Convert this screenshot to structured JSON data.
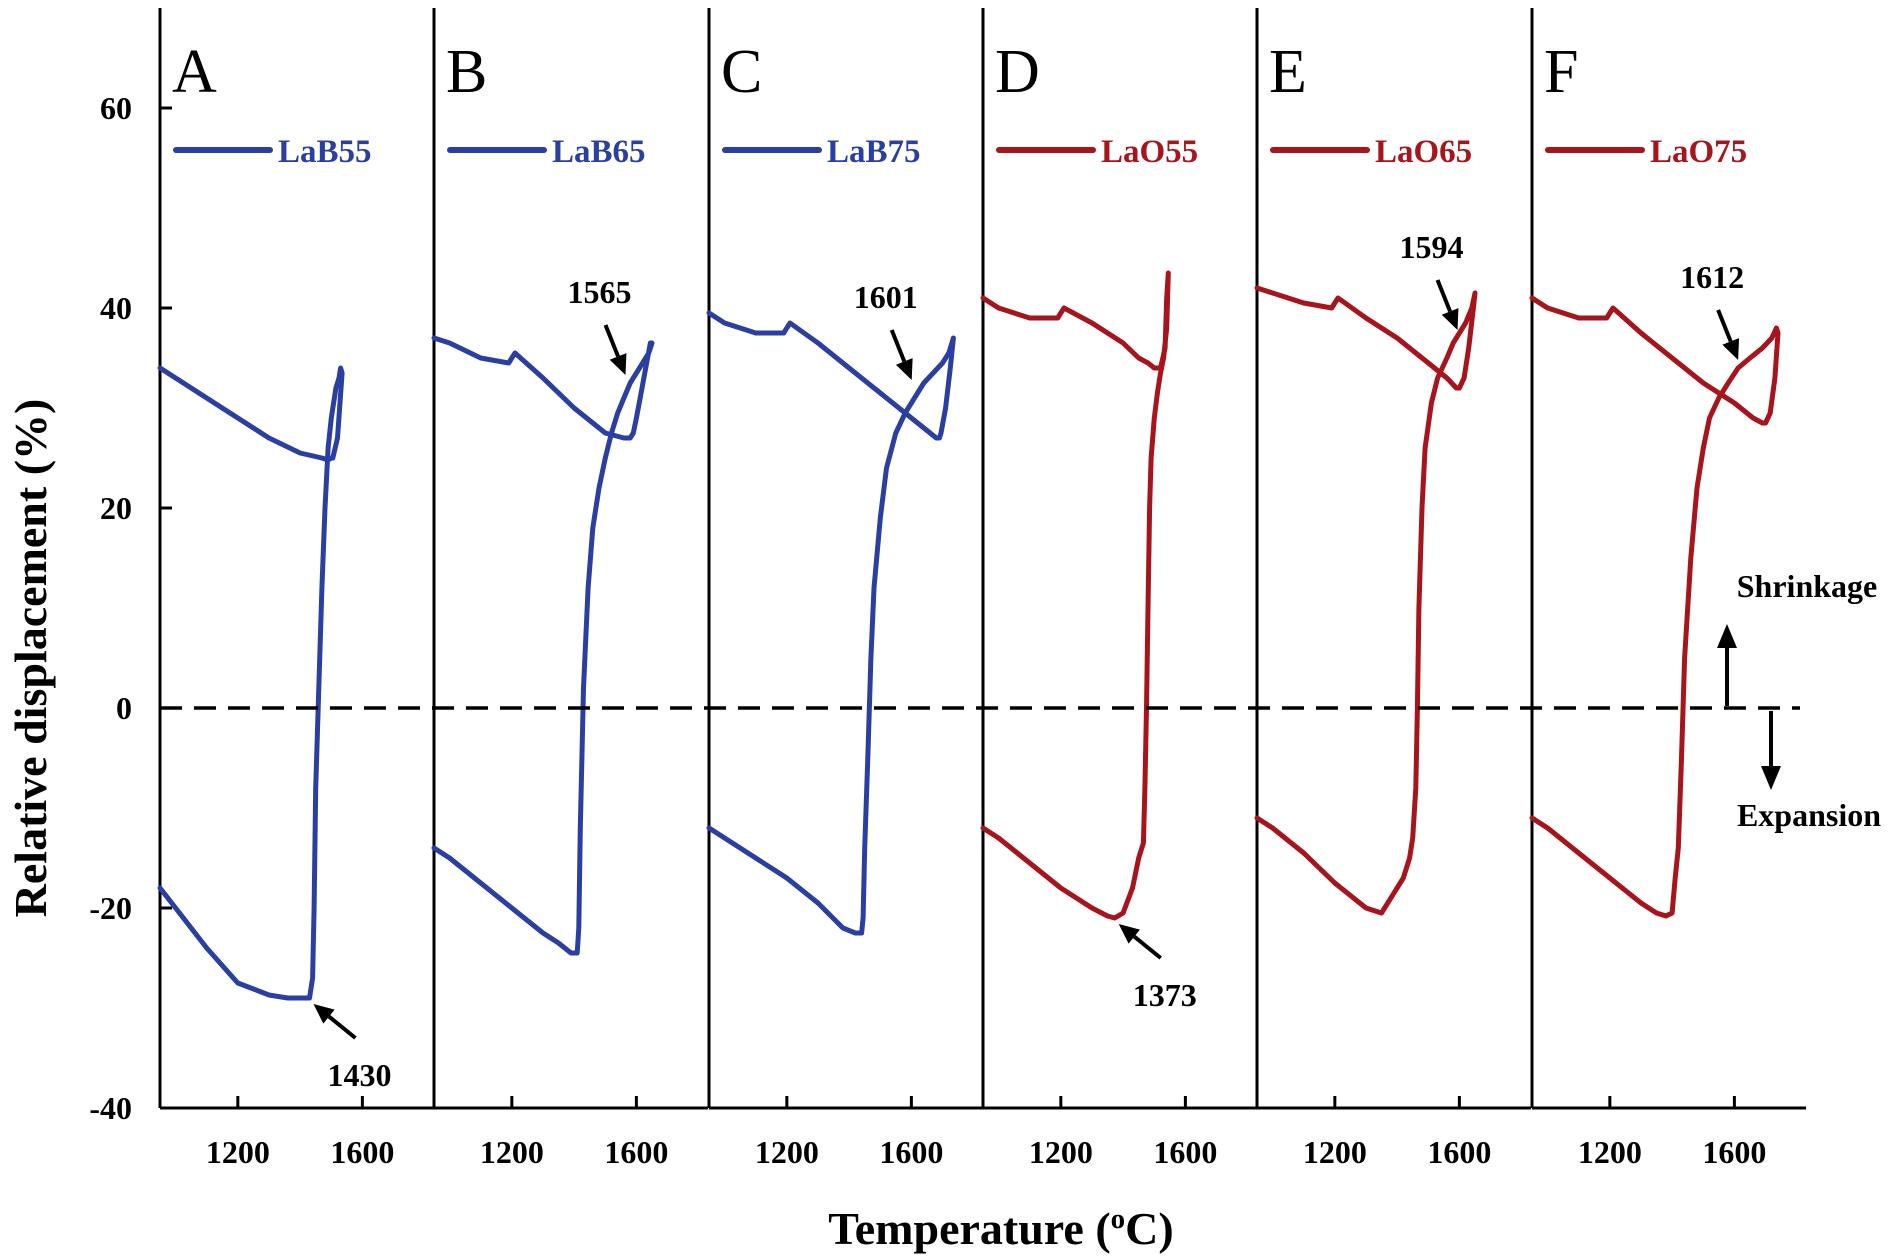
{
  "chart_data": {
    "type": "line",
    "xlabel": "Temperature (",
    "xlabel_sup": "o",
    "xlabel_end": "C)",
    "ylabel": "Relative displacement (%)",
    "xlim": [
      950,
      1830
    ],
    "ylim": [
      -40,
      70
    ],
    "xticks": [
      1200,
      1600
    ],
    "yticks": [
      -40,
      -20,
      0,
      20,
      40,
      60
    ],
    "reference_line": 0,
    "shrinkage_label": "Shrinkage",
    "expansion_label": "Expansion",
    "colors": {
      "LaB": "#2b3fa3",
      "LaO": "#a8141b"
    },
    "panels": [
      {
        "letter": "A",
        "series_name": "LaB55",
        "color": "#2b3fa3",
        "annotation": {
          "text": "1430",
          "x": 1430,
          "y": -29
        },
        "x": [
          950,
          1000,
          1100,
          1200,
          1300,
          1360,
          1400,
          1420,
          1430,
          1440,
          1445,
          1450,
          1460,
          1470,
          1480,
          1490,
          1500,
          1505,
          1510,
          1515,
          1525,
          1530,
          1535,
          1520,
          1505,
          1500,
          1490,
          1470,
          1400,
          1300,
          1200,
          1100,
          1000,
          950
        ],
        "y": [
          -18,
          -20,
          -24,
          -27.5,
          -28.7,
          -29,
          -29,
          -29,
          -29,
          -27,
          -20,
          -8,
          2,
          12,
          20,
          26,
          29,
          30,
          31,
          32,
          33,
          34,
          33.5,
          27,
          25,
          25,
          24.8,
          25,
          25.5,
          27,
          29,
          31,
          33,
          34
        ]
      },
      {
        "letter": "B",
        "series_name": "LaB65",
        "color": "#2b3fa3",
        "annotation": {
          "text": "1565",
          "x": 1565,
          "y": 32.5
        },
        "x": [
          950,
          1000,
          1100,
          1200,
          1300,
          1350,
          1390,
          1410,
          1415,
          1420,
          1430,
          1445,
          1460,
          1480,
          1500,
          1520,
          1540,
          1560,
          1580,
          1600,
          1620,
          1640,
          1650,
          1645,
          1630,
          1615,
          1600,
          1590,
          1580,
          1560,
          1500,
          1400,
          1300,
          1210,
          1200,
          1190,
          1100,
          1000,
          950
        ],
        "y": [
          -14,
          -15,
          -17.5,
          -20,
          -22.5,
          -23.5,
          -24.5,
          -24.5,
          -22,
          -12,
          2,
          12,
          18,
          22,
          25,
          27.5,
          29.5,
          31,
          32.5,
          33.5,
          34.5,
          35.5,
          36.5,
          36.5,
          34,
          31.5,
          29,
          27.5,
          27,
          27,
          27.5,
          30,
          33,
          35.5,
          35,
          34.5,
          35,
          36.5,
          37
        ]
      },
      {
        "letter": "C",
        "series_name": "LaB75",
        "color": "#2b3fa3",
        "annotation": {
          "text": "1601",
          "x": 1601,
          "y": 32
        },
        "x": [
          950,
          1000,
          1100,
          1200,
          1300,
          1380,
          1420,
          1440,
          1445,
          1450,
          1460,
          1470,
          1480,
          1500,
          1520,
          1550,
          1580,
          1610,
          1640,
          1670,
          1700,
          1720,
          1730,
          1735,
          1725,
          1710,
          1695,
          1690,
          1680,
          1660,
          1600,
          1500,
          1400,
          1300,
          1210,
          1200,
          1190,
          1100,
          1000,
          950
        ],
        "y": [
          -12,
          -13,
          -15,
          -17,
          -19.5,
          -22,
          -22.5,
          -22.5,
          -21,
          -14,
          -5,
          5,
          12,
          19,
          24,
          27.5,
          29.5,
          31,
          32.5,
          33.5,
          34.5,
          35.5,
          36.5,
          37,
          34,
          30,
          27.5,
          27,
          27,
          27.5,
          29,
          31.5,
          34,
          36.5,
          38.5,
          38,
          37.5,
          37.5,
          38.5,
          39.5
        ]
      },
      {
        "letter": "D",
        "series_name": "LaO55",
        "color": "#a8141b",
        "annotation": {
          "text": "1373",
          "x": 1373,
          "y": -21
        },
        "x": [
          950,
          1000,
          1100,
          1200,
          1300,
          1350,
          1373,
          1400,
          1430,
          1450,
          1465,
          1470,
          1475,
          1480,
          1485,
          1490,
          1500,
          1510,
          1520,
          1530,
          1540,
          1545,
          1540,
          1535,
          1520,
          1500,
          1480,
          1450,
          1400,
          1300,
          1210,
          1200,
          1190,
          1100,
          1000,
          950
        ],
        "y": [
          -12,
          -13,
          -15.5,
          -18,
          -20,
          -20.8,
          -21,
          -20.5,
          -18,
          -15,
          -13.5,
          -8,
          0,
          10,
          20,
          25,
          29,
          31.5,
          33.5,
          35,
          38,
          43.5,
          41,
          36,
          34,
          34,
          34.5,
          35,
          36.5,
          38.5,
          40,
          39.5,
          39,
          39,
          40,
          41
        ]
      },
      {
        "letter": "E",
        "series_name": "LaO65",
        "color": "#a8141b",
        "annotation": {
          "text": "1594",
          "x": 1594,
          "y": 37
        },
        "x": [
          950,
          1000,
          1100,
          1200,
          1300,
          1350,
          1400,
          1420,
          1440,
          1450,
          1460,
          1465,
          1470,
          1480,
          1490,
          1510,
          1530,
          1560,
          1580,
          1600,
          1620,
          1640,
          1650,
          1645,
          1630,
          1615,
          1600,
          1590,
          1575,
          1560,
          1500,
          1400,
          1300,
          1210,
          1200,
          1190,
          1100,
          1000,
          950
        ],
        "y": [
          -11,
          -12,
          -14.5,
          -17.5,
          -20,
          -20.5,
          -18,
          -17,
          -15,
          -13,
          -8,
          0,
          10,
          20,
          26,
          30.5,
          33,
          35,
          36.5,
          37.5,
          38.5,
          40,
          41.5,
          40,
          36,
          33,
          32,
          32,
          32.5,
          33,
          34.5,
          37,
          39,
          41,
          40.5,
          40,
          40.5,
          41.5,
          42
        ]
      },
      {
        "letter": "F",
        "series_name": "LaO75",
        "color": "#a8141b",
        "annotation": {
          "text": "1612",
          "x": 1612,
          "y": 34
        },
        "x": [
          950,
          1000,
          1100,
          1200,
          1300,
          1350,
          1380,
          1400,
          1410,
          1420,
          1430,
          1440,
          1460,
          1480,
          1500,
          1520,
          1550,
          1580,
          1612,
          1650,
          1690,
          1720,
          1735,
          1740,
          1730,
          1715,
          1700,
          1690,
          1660,
          1600,
          1500,
          1400,
          1300,
          1210,
          1200,
          1190,
          1100,
          1000,
          950
        ],
        "y": [
          -11,
          -12,
          -14.5,
          -17,
          -19.5,
          -20.5,
          -20.8,
          -20.5,
          -17,
          -14,
          -5,
          5,
          15,
          22,
          26,
          29,
          31,
          32.5,
          34,
          35,
          36,
          37,
          38,
          37.5,
          33,
          29.5,
          28.5,
          28.5,
          29,
          30.5,
          32.5,
          35,
          37.5,
          40,
          39.5,
          39,
          39,
          40,
          41
        ]
      }
    ]
  }
}
